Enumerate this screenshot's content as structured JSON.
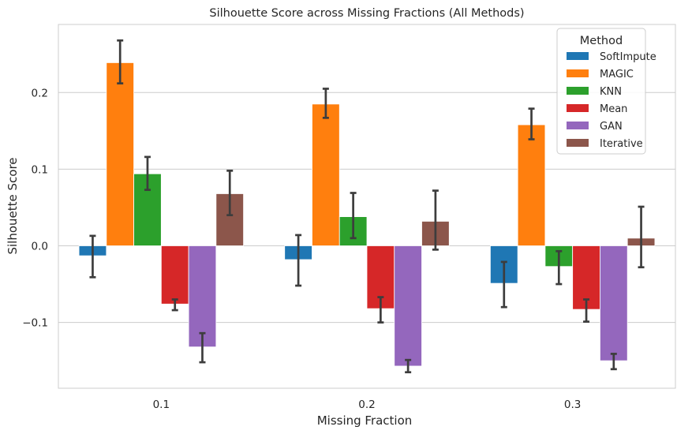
{
  "chart_data": {
    "type": "bar",
    "title": "Silhouette Score across Missing Fractions (All Methods)",
    "xlabel": "Missing Fraction",
    "ylabel": "Silhouette Score",
    "categories": [
      "0.1",
      "0.2",
      "0.3"
    ],
    "ylim": [
      -0.19,
      0.29
    ],
    "yticks": [
      {
        "value": -0.1,
        "label": "−0.1"
      },
      {
        "value": 0.0,
        "label": "0.0"
      },
      {
        "value": 0.1,
        "label": "0.1"
      },
      {
        "value": 0.2,
        "label": "0.2"
      }
    ],
    "grid": "horizontal",
    "legend": {
      "title": "Method",
      "placement": "top-right"
    },
    "series": [
      {
        "name": "SoftImpute",
        "color": "#1f77b4",
        "values": [
          -0.013,
          -0.018,
          -0.049
        ],
        "err_low": [
          -0.041,
          -0.052,
          -0.08
        ],
        "err_high": [
          0.013,
          0.014,
          -0.021
        ]
      },
      {
        "name": "MAGIC",
        "color": "#ff7f0e",
        "values": [
          0.239,
          0.185,
          0.158
        ],
        "err_low": [
          0.212,
          0.167,
          0.139
        ],
        "err_high": [
          0.268,
          0.205,
          0.179
        ]
      },
      {
        "name": "KNN",
        "color": "#2ca02c",
        "values": [
          0.094,
          0.038,
          -0.027
        ],
        "err_low": [
          0.073,
          0.01,
          -0.05
        ],
        "err_high": [
          0.116,
          0.069,
          -0.007
        ]
      },
      {
        "name": "Mean",
        "color": "#d62728",
        "values": [
          -0.076,
          -0.082,
          -0.083
        ],
        "err_low": [
          -0.084,
          -0.1,
          -0.099
        ],
        "err_high": [
          -0.07,
          -0.067,
          -0.07
        ]
      },
      {
        "name": "GAN",
        "color": "#9467bd",
        "values": [
          -0.132,
          -0.157,
          -0.15
        ],
        "err_low": [
          -0.152,
          -0.165,
          -0.161
        ],
        "err_high": [
          -0.114,
          -0.149,
          -0.141
        ]
      },
      {
        "name": "Iterative",
        "color": "#8c564b",
        "values": [
          0.068,
          0.032,
          0.01
        ],
        "err_low": [
          0.04,
          -0.005,
          -0.028
        ],
        "err_high": [
          0.098,
          0.072,
          0.051
        ]
      }
    ]
  }
}
